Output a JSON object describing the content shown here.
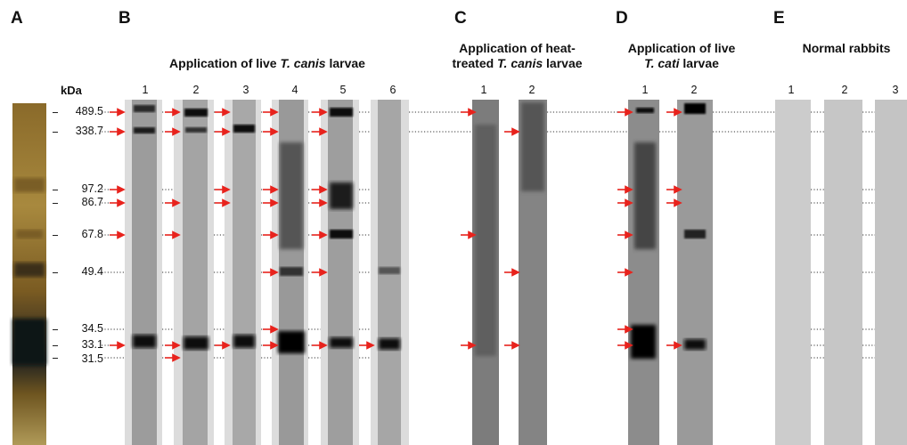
{
  "panels": {
    "A": {
      "letter": "A"
    },
    "B": {
      "letter": "B",
      "title_pre": "Application of live ",
      "title_italic": "T. canis",
      "title_post": " larvae",
      "lanes": [
        "1",
        "2",
        "3",
        "4",
        "5",
        "6"
      ]
    },
    "C": {
      "letter": "C",
      "title_line1": "Application of heat-",
      "title_line2_pre": "treated ",
      "title_line2_italic": "T. canis",
      "title_line2_post": " larvae",
      "lanes": [
        "1",
        "2"
      ]
    },
    "D": {
      "letter": "D",
      "title_line1": "Application of live",
      "title_line2_italic": "T. cati",
      "title_line2_post": " larvae",
      "lanes": [
        "1",
        "2"
      ]
    },
    "E": {
      "letter": "E",
      "title": "Normal rabbits",
      "lanes": [
        "1",
        "2",
        "3"
      ]
    }
  },
  "marker": {
    "unit": "kDa",
    "labels": [
      "489.5",
      "338.7",
      "97.2",
      "86.7",
      "67.8",
      "49.4",
      "34.5",
      "33.1",
      "31.5"
    ]
  },
  "colors": {
    "arrow": "#e8231d",
    "dotted_line": "#333333",
    "lane_background": "#d9d9d9",
    "band": "#101010"
  }
}
